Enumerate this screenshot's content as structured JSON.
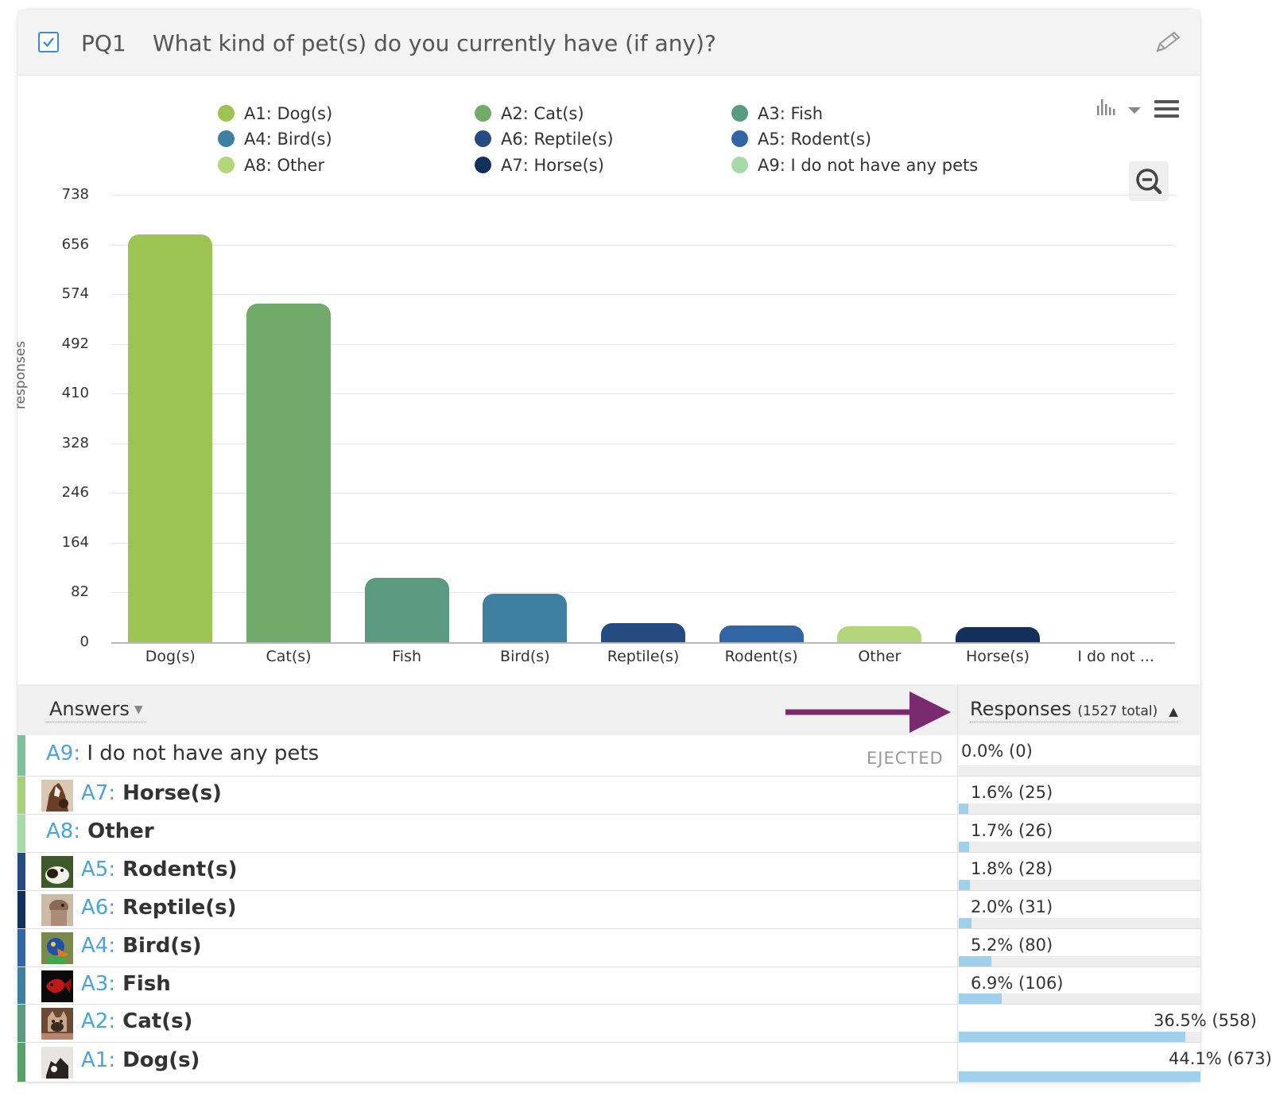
{
  "question": {
    "id": "PQ1",
    "text": "What kind of pet(s) do you currently have (if any)?"
  },
  "legend": [
    {
      "label": "A1: Dog(s)",
      "color": "#9bc453"
    },
    {
      "label": "A2: Cat(s)",
      "color": "#72aa6c"
    },
    {
      "label": "A3: Fish",
      "color": "#5a9a80"
    },
    {
      "label": "A4: Bird(s)",
      "color": "#3f7fa0"
    },
    {
      "label": "A6: Reptile(s)",
      "color": "#264b80"
    },
    {
      "label": "A5: Rodent(s)",
      "color": "#3165a4"
    },
    {
      "label": "A8: Other",
      "color": "#b3d67a"
    },
    {
      "label": "A7: Horse(s)",
      "color": "#13305b"
    },
    {
      "label": "A9: I do not have any pets",
      "color": "#a8d9a8"
    }
  ],
  "chart_data": {
    "type": "bar",
    "ylabel": "responses",
    "xlabel": "",
    "ylim": [
      0,
      738
    ],
    "yticks": [
      "0",
      "82",
      "164",
      "246",
      "328",
      "410",
      "492",
      "574",
      "656",
      "738"
    ],
    "categories": [
      "Dog(s)",
      "Cat(s)",
      "Fish",
      "Bird(s)",
      "Reptile(s)",
      "Rodent(s)",
      "Other",
      "Horse(s)",
      "I do not ..."
    ],
    "values": [
      673,
      558,
      106,
      80,
      31,
      28,
      26,
      25,
      0
    ],
    "colors": [
      "#9bc453",
      "#72aa6c",
      "#5a9a80",
      "#3f7fa0",
      "#264b80",
      "#3165a4",
      "#b3d67a",
      "#13305b",
      "#a8d9a8"
    ],
    "grid": true,
    "legend_position": "top"
  },
  "table": {
    "answers_header": "Answers",
    "responses_header": "Responses",
    "responses_total": "(1527 total)",
    "rows": [
      {
        "code": "A9:",
        "label": "I do not have any pets",
        "tag": "EJECTED",
        "pct_text": "0.0% (0)",
        "fraction": 0.0,
        "stripe": "#7fbf9a",
        "bold": false,
        "thumb": ""
      },
      {
        "code": "A7:",
        "label": "Horse(s)",
        "tag": "",
        "pct_text": "1.6% (25)",
        "fraction": 0.016,
        "stripe": "#a6d07a",
        "bold": true,
        "thumb": "horse-thumbnail"
      },
      {
        "code": "A8:",
        "label": "Other",
        "tag": "",
        "pct_text": "1.7% (26)",
        "fraction": 0.017,
        "stripe": "#a8d9a8",
        "bold": true,
        "thumb": ""
      },
      {
        "code": "A5:",
        "label": "Rodent(s)",
        "tag": "",
        "pct_text": "1.8% (28)",
        "fraction": 0.018,
        "stripe": "#264b80",
        "bold": true,
        "thumb": "rodent-thumbnail"
      },
      {
        "code": "A6:",
        "label": "Reptile(s)",
        "tag": "",
        "pct_text": "2.0% (31)",
        "fraction": 0.02,
        "stripe": "#13305b",
        "bold": true,
        "thumb": "reptile-thumbnail"
      },
      {
        "code": "A4:",
        "label": "Bird(s)",
        "tag": "",
        "pct_text": "5.2% (80)",
        "fraction": 0.052,
        "stripe": "#3165a4",
        "bold": true,
        "thumb": "bird-thumbnail"
      },
      {
        "code": "A3:",
        "label": "Fish",
        "tag": "",
        "pct_text": "6.9% (106)",
        "fraction": 0.069,
        "stripe": "#3f7fa0",
        "bold": true,
        "thumb": "fish-thumbnail"
      },
      {
        "code": "A2:",
        "label": "Cat(s)",
        "tag": "",
        "pct_text": "36.5% (558)",
        "fraction": 0.365,
        "stripe": "#5a9a80",
        "bold": true,
        "thumb": "cat-thumbnail"
      },
      {
        "code": "A1:",
        "label": "Dog(s)",
        "tag": "",
        "pct_text": "44.1% (673)",
        "fraction": 0.441,
        "stripe": "#5aa06a",
        "bold": true,
        "thumb": "dog-thumbnail"
      }
    ]
  },
  "accent_arrow_color": "#7a2a6e",
  "link_color": "#4aa3df"
}
